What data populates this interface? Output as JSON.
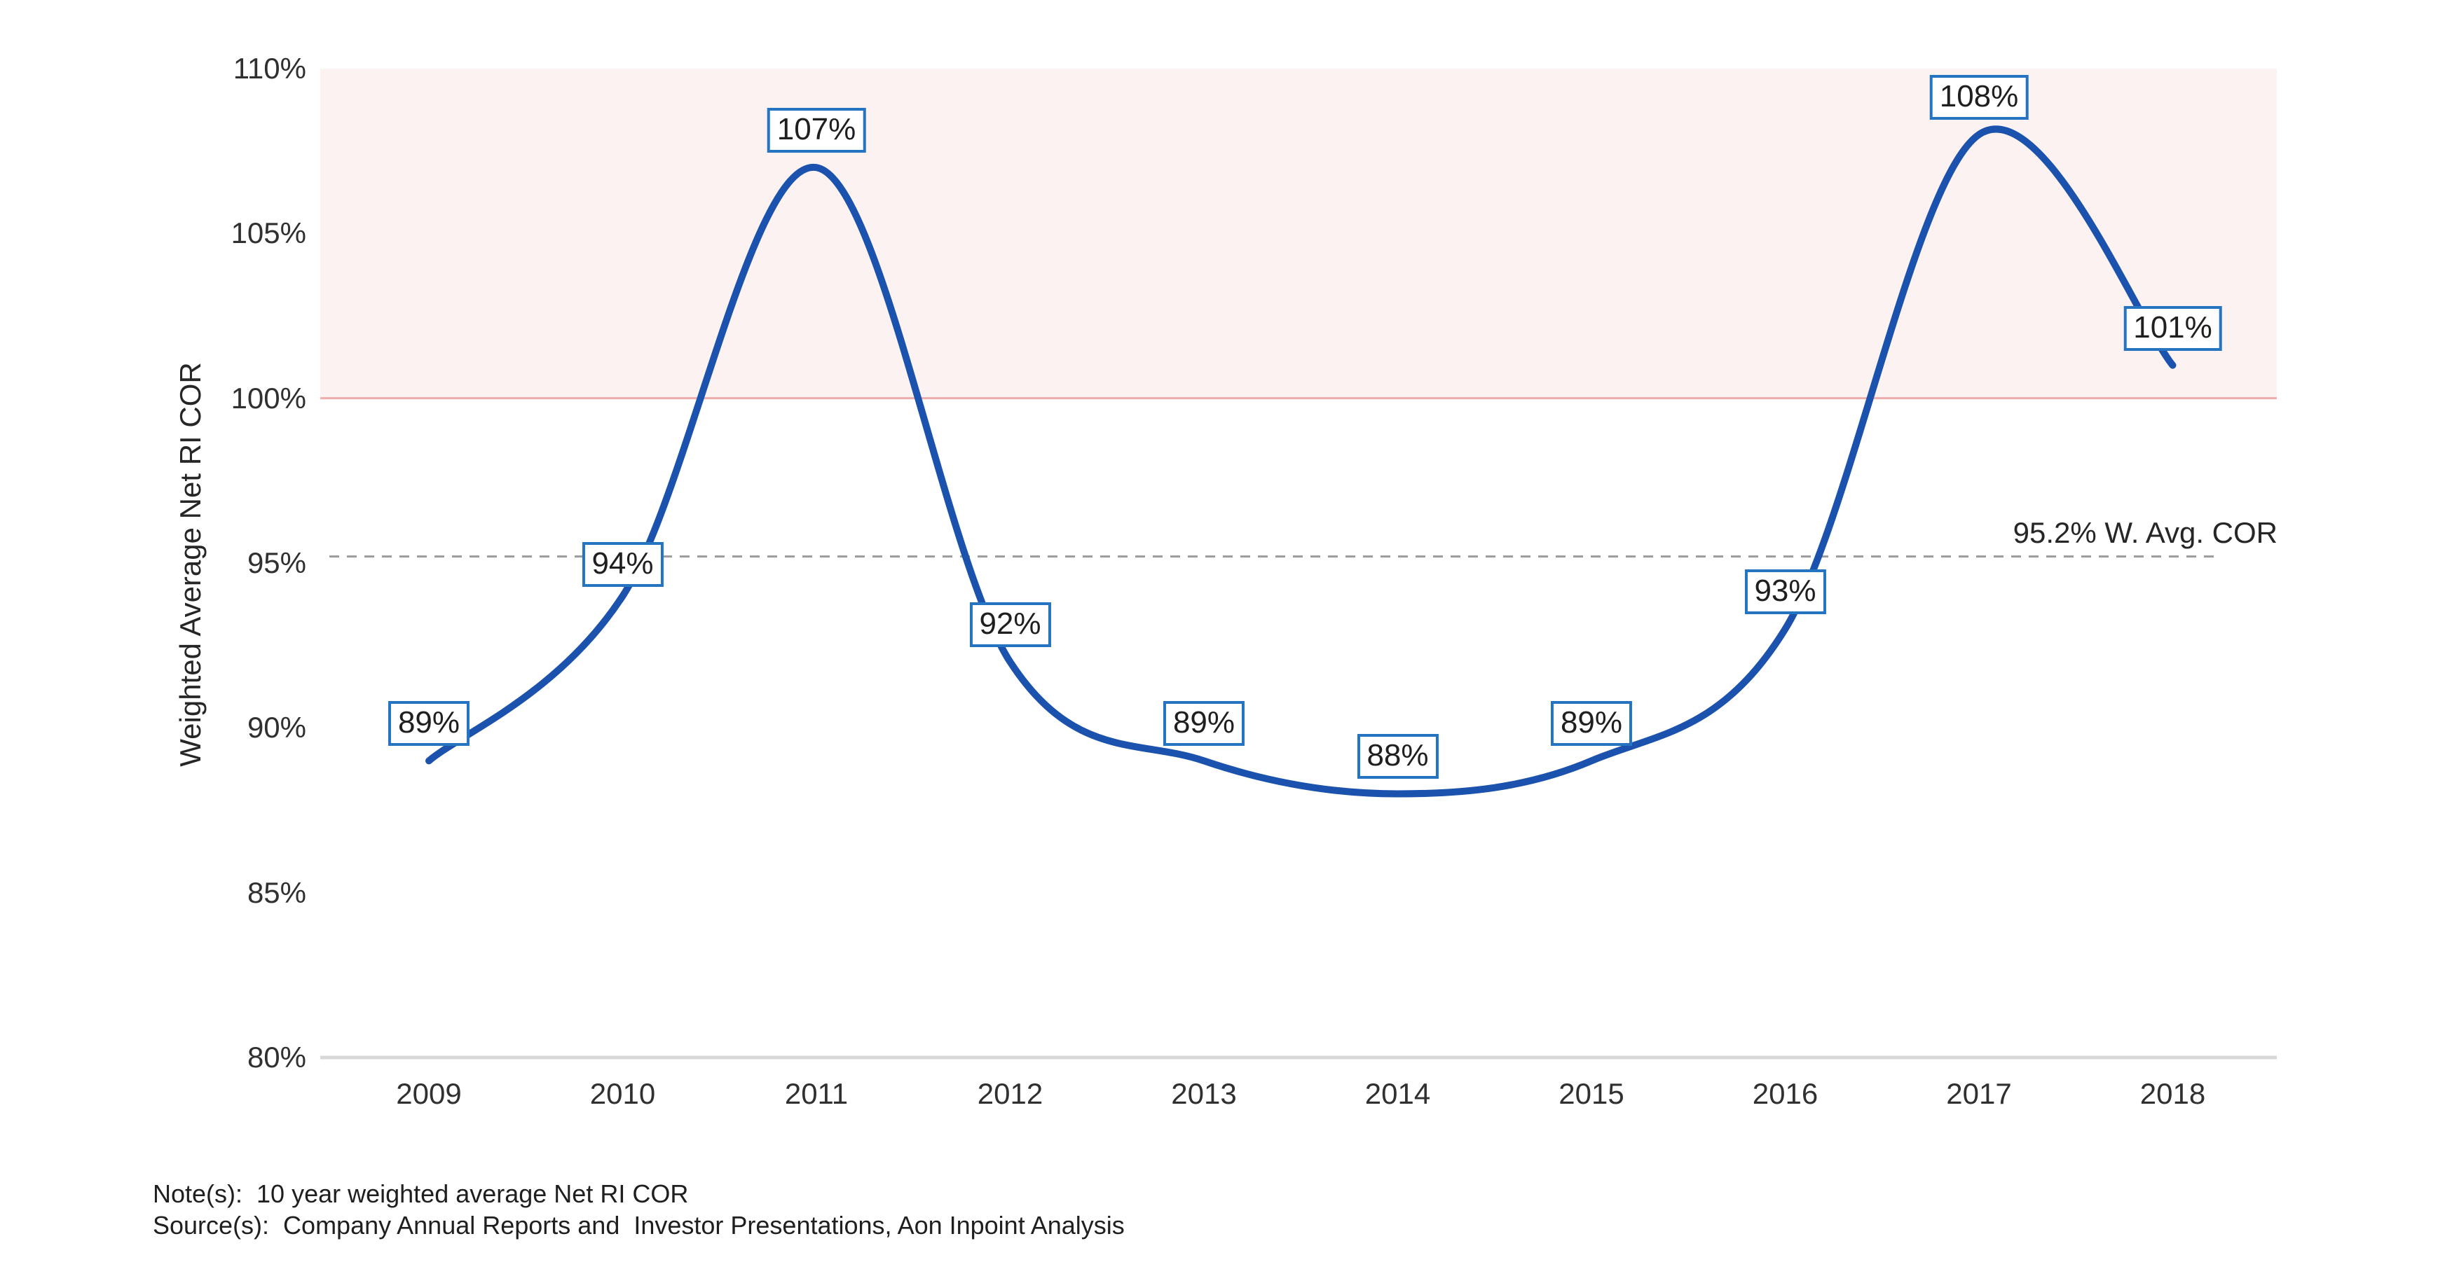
{
  "chart_data": {
    "type": "line",
    "title": "",
    "ylabel": "Weighted Average Net RI COR",
    "categories": [
      "2009",
      "2010",
      "2011",
      "2012",
      "2013",
      "2014",
      "2015",
      "2016",
      "2017",
      "2018"
    ],
    "series": [
      {
        "name": "Weighted Average Net RI COR",
        "values": [
          89,
          94,
          107,
          92,
          89,
          88,
          89,
          93,
          108,
          101
        ]
      }
    ],
    "data_labels": [
      "89%",
      "94%",
      "107%",
      "92%",
      "89%",
      "88%",
      "89%",
      "93%",
      "108%",
      "101%"
    ],
    "ylim": [
      80,
      110
    ],
    "yticks": [
      {
        "value": 110,
        "label": "110%"
      },
      {
        "value": 105,
        "label": "105%"
      },
      {
        "value": 100,
        "label": "100%"
      },
      {
        "value": 95,
        "label": "95%"
      },
      {
        "value": 90,
        "label": "90%"
      },
      {
        "value": 85,
        "label": "85%"
      },
      {
        "value": 80,
        "label": "80%"
      }
    ],
    "grid": "off",
    "legend": "none",
    "reference_band": {
      "from": 100,
      "to": 110,
      "fill": "#FCF2F1"
    },
    "reference_line": {
      "value": 100,
      "color": "#F2ACAA"
    },
    "average_line": {
      "value": 95.2,
      "label": "95.2% W. Avg. COR",
      "style": "dashed",
      "color": "#9B9B9B"
    },
    "colors": {
      "series_line": "#1A52AE",
      "label_box_border": "#2474C2",
      "label_text": "#1F1F1F",
      "axis_text": "#303030",
      "axis_line": "#D8D8D8"
    }
  },
  "footnotes": {
    "note": "Note(s):  10 year weighted average Net RI COR",
    "source": "Source(s):  Company Annual Reports and  Investor Presentations, Aon Inpoint Analysis"
  }
}
